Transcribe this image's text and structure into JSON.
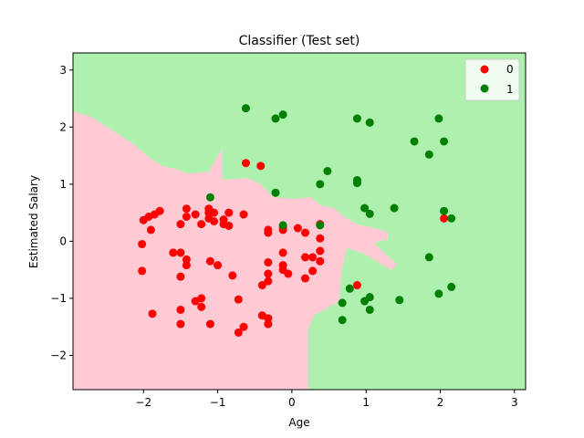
{
  "chart_data": {
    "type": "scatter",
    "title": "Classifier (Test set)",
    "xlabel": "Age",
    "ylabel": "Estimated Salary",
    "xlim": [
      -2.95,
      3.15
    ],
    "ylim": [
      -2.6,
      3.3
    ],
    "xticks": [
      -2,
      -1,
      0,
      1,
      2,
      3
    ],
    "yticks": [
      -2,
      -1,
      0,
      1,
      2,
      3
    ],
    "grid": false,
    "legend_position": "top-right",
    "region_colors": {
      "0": "#ffcad3",
      "1": "#aef0ae"
    },
    "series": [
      {
        "name": "0",
        "color": "#ff0000",
        "points": [
          [
            -2.0,
            0.37
          ],
          [
            -1.93,
            0.43
          ],
          [
            -1.85,
            0.47
          ],
          [
            -1.78,
            0.53
          ],
          [
            -1.5,
            0.3
          ],
          [
            -1.42,
            0.57
          ],
          [
            -1.42,
            0.43
          ],
          [
            -1.3,
            0.47
          ],
          [
            -1.12,
            0.57
          ],
          [
            -1.12,
            0.5
          ],
          [
            -1.05,
            0.5
          ],
          [
            -0.92,
            0.3
          ],
          [
            -0.85,
            0.5
          ],
          [
            -0.65,
            0.47
          ],
          [
            -1.22,
            0.3
          ],
          [
            -1.12,
            0.4
          ],
          [
            -1.05,
            0.35
          ],
          [
            -0.92,
            0.38
          ],
          [
            -0.85,
            0.27
          ],
          [
            -1.9,
            0.2
          ],
          [
            -2.02,
            -0.05
          ],
          [
            -1.6,
            -0.2
          ],
          [
            -1.5,
            -0.2
          ],
          [
            -1.42,
            -0.32
          ],
          [
            -1.42,
            -0.42
          ],
          [
            -2.02,
            -0.52
          ],
          [
            -1.5,
            -0.62
          ],
          [
            -1.1,
            -0.35
          ],
          [
            -1.0,
            -0.42
          ],
          [
            -0.8,
            -0.6
          ],
          [
            -1.3,
            -1.05
          ],
          [
            -1.22,
            -1.0
          ],
          [
            -1.22,
            -1.15
          ],
          [
            -1.5,
            -1.2
          ],
          [
            -1.5,
            -1.45
          ],
          [
            -1.1,
            -1.45
          ],
          [
            -1.88,
            -1.27
          ],
          [
            -0.72,
            -1.02
          ],
          [
            -0.72,
            -1.6
          ],
          [
            -0.65,
            -1.5
          ],
          [
            -0.4,
            -1.3
          ],
          [
            -0.32,
            -1.35
          ],
          [
            -0.32,
            -1.45
          ],
          [
            -0.4,
            -0.77
          ],
          [
            -0.32,
            -0.7
          ],
          [
            -0.32,
            -0.57
          ],
          [
            -0.32,
            -0.37
          ],
          [
            -0.12,
            -0.42
          ],
          [
            -0.12,
            -0.5
          ],
          [
            -0.05,
            -0.57
          ],
          [
            0.18,
            -0.65
          ],
          [
            0.28,
            -0.52
          ],
          [
            0.28,
            -0.28
          ],
          [
            0.18,
            -0.28
          ],
          [
            0.38,
            -0.35
          ],
          [
            0.38,
            -0.17
          ],
          [
            -0.12,
            -0.2
          ],
          [
            -0.12,
            0.25
          ],
          [
            -0.32,
            0.2
          ],
          [
            -0.32,
            0.15
          ],
          [
            -0.12,
            0.2
          ],
          [
            0.08,
            0.23
          ],
          [
            0.18,
            0.15
          ],
          [
            0.38,
            0.05
          ],
          [
            0.38,
            0.3
          ],
          [
            -0.62,
            1.37
          ],
          [
            -0.42,
            1.32
          ],
          [
            0.88,
            -0.77
          ],
          [
            2.05,
            0.4
          ]
        ]
      },
      {
        "name": "1",
        "color": "#008000",
        "points": [
          [
            -0.62,
            2.33
          ],
          [
            -0.22,
            2.15
          ],
          [
            -0.12,
            2.22
          ],
          [
            0.88,
            2.15
          ],
          [
            1.05,
            2.08
          ],
          [
            1.98,
            2.15
          ],
          [
            1.65,
            1.75
          ],
          [
            2.05,
            1.75
          ],
          [
            1.85,
            1.52
          ],
          [
            0.48,
            1.23
          ],
          [
            0.38,
            1.0
          ],
          [
            0.88,
            1.07
          ],
          [
            0.88,
            1.02
          ],
          [
            -0.22,
            0.85
          ],
          [
            -1.1,
            0.77
          ],
          [
            0.98,
            0.58
          ],
          [
            1.05,
            0.48
          ],
          [
            1.38,
            0.58
          ],
          [
            2.05,
            0.53
          ],
          [
            2.15,
            0.4
          ],
          [
            0.38,
            0.28
          ],
          [
            -0.12,
            0.28
          ],
          [
            1.85,
            -0.28
          ],
          [
            0.78,
            -0.83
          ],
          [
            1.05,
            -0.98
          ],
          [
            0.98,
            -1.05
          ],
          [
            0.68,
            -1.08
          ],
          [
            1.05,
            -1.2
          ],
          [
            0.68,
            -1.38
          ],
          [
            1.45,
            -1.03
          ],
          [
            1.98,
            -0.92
          ],
          [
            2.15,
            -0.8
          ]
        ]
      }
    ]
  }
}
